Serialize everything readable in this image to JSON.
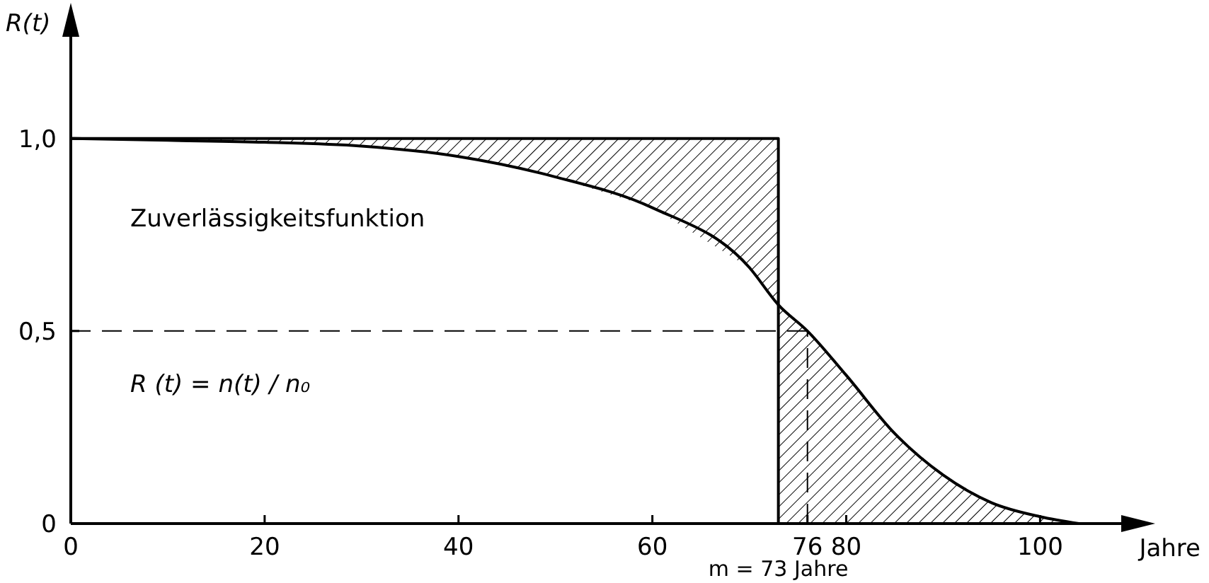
{
  "chart_data": {
    "type": "line",
    "ylabel": "R(t)",
    "xlabel": "Jahre",
    "xlim": [
      0,
      111
    ],
    "ylim": [
      0,
      1.33
    ],
    "xticks": [
      0,
      20,
      40,
      60,
      76,
      80,
      100
    ],
    "yticks": [
      0,
      {
        "value": 0.5,
        "label": "0,5"
      },
      {
        "value": 1,
        "label": "1,0"
      }
    ],
    "series": [
      {
        "color": "#000000",
        "x": [
          0,
          10,
          20,
          30,
          40,
          50,
          60,
          70,
          73,
          73,
          76,
          80,
          85,
          90,
          95,
          100,
          104
        ],
        "values": [
          1,
          0.995,
          0.99,
          0.98,
          0.953,
          0.9,
          0.82,
          0.665,
          0.568,
          0.568,
          0.5,
          0.385,
          0.234,
          0.126,
          0.054,
          0.018,
          0
        ],
        "lower": [
          1,
          0.995,
          0.99,
          0.98,
          0.953,
          0.9,
          0.82,
          0.665,
          0.568,
          0,
          0,
          0,
          0,
          0,
          0,
          0,
          0
        ],
        "upper": [
          1,
          1,
          1,
          1,
          1,
          1,
          1,
          1,
          1,
          0.568,
          0.5,
          0.385,
          0.234,
          0.126,
          0.054,
          0.018,
          0
        ]
      },
      {
        "color": "#000000",
        "x": [
          0,
          73,
          73
        ],
        "values": [
          1,
          1,
          0
        ]
      }
    ],
    "ref_lines": [
      {
        "axis": "y",
        "value": 0.5,
        "line_style": "dashed"
      },
      {
        "axis": "x",
        "value": 76,
        "line_style": "dashed"
      }
    ],
    "annotations": [
      "Zuverlässigkeitsfunktion",
      "R (t) = n(t) / n₀",
      {
        "text": "m = 73 Jahre",
        "x": 73,
        "y": 0
      }
    ],
    "grid": false,
    "marker": "none",
    "line_style": "solid"
  }
}
